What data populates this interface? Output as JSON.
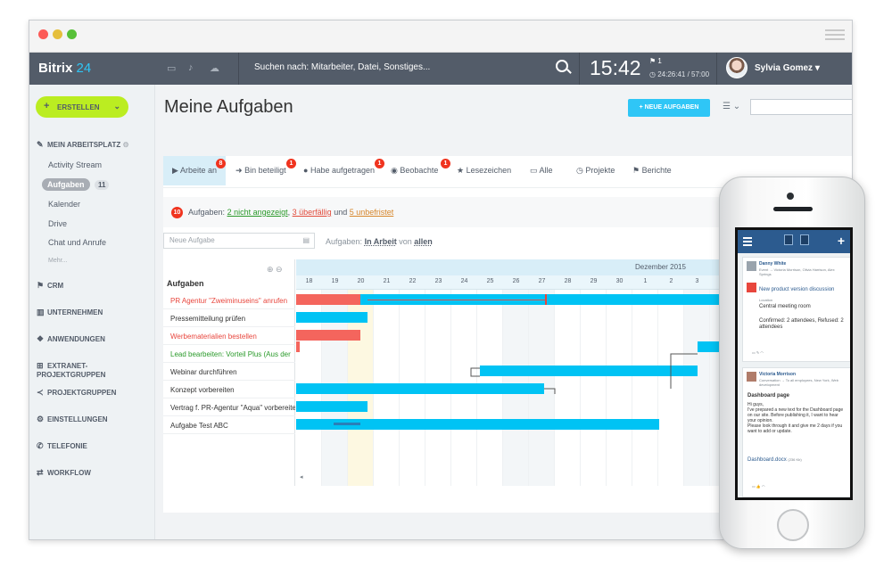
{
  "app": {
    "logo_main": "Bitrix",
    "logo_num": "24",
    "search_placeholder": "Suchen nach: Mitarbeiter, Datei, Sonstiges...",
    "clock": "15:42",
    "clock_flag": "1",
    "clock_sub": "24:26:41 / 57:00",
    "user_name": "Sylvia Gomez"
  },
  "sidebar": {
    "create_label": "ERSTELLEN",
    "section_workplace": "MEIN ARBEITSPLATZ",
    "items": [
      "Activity Stream",
      "Aufgaben",
      "Kalender",
      "Drive",
      "Chat und Anrufe"
    ],
    "tasks_count": "11",
    "more": "Mehr...",
    "sections": [
      "CRM",
      "UNTERNEHMEN",
      "ANWENDUNGEN",
      "EXTRANET-PROJEKTGRUPPEN",
      "PROJEKTGRUPPEN",
      "EINSTELLUNGEN",
      "TELEFONIE",
      "WORKFLOW"
    ]
  },
  "main": {
    "title": "Meine Aufgaben",
    "new_task_button": "NEUE AUFGABEN",
    "tabs": [
      {
        "label": "Arbeite an",
        "badge": "8"
      },
      {
        "label": "Bin beteiligt",
        "badge": "1"
      },
      {
        "label": "Habe aufgetragen",
        "badge": "1"
      },
      {
        "label": "Beobachte",
        "badge": "1"
      },
      {
        "label": "Lesezeichen",
        "badge": ""
      },
      {
        "label": "Alle",
        "badge": ""
      },
      {
        "label": "Projekte",
        "badge": ""
      },
      {
        "label": "Berichte",
        "badge": ""
      }
    ],
    "notice": {
      "count": "10",
      "prefix": "Aufgaben:",
      "link1": "2 nicht angezeigt",
      "link2": "3 überfällig",
      "and": "und",
      "link3": "5 unbefristet"
    },
    "new_task_placeholder": "Neue Aufgabe",
    "filter": {
      "prefix": "Aufgaben:",
      "status": "In Arbeit",
      "von": "von",
      "who": "allen"
    }
  },
  "gantt": {
    "header": "Aufgaben",
    "month": "Dezember 2015",
    "days": [
      "18",
      "19",
      "20",
      "21",
      "22",
      "23",
      "24",
      "25",
      "26",
      "27",
      "28",
      "29",
      "30",
      "1",
      "2",
      "3",
      "4"
    ],
    "tasks": [
      {
        "name": "PR Agentur \"Zweiminuseins\" anrufen",
        "color": "#e8463d"
      },
      {
        "name": "Pressemitteilung prüfen",
        "color": "#333333"
      },
      {
        "name": "Werbematerialien bestellen",
        "color": "#e8463d"
      },
      {
        "name": "Lead bearbeiten: Vorteil Plus (Aus der",
        "color": "#2a9a2a"
      },
      {
        "name": "Webinar durchführen",
        "color": "#333333"
      },
      {
        "name": "Konzept vorbereiten",
        "color": "#333333"
      },
      {
        "name": "Vertrag f. PR-Agentur \"Aqua\" vorbereite",
        "color": "#333333"
      },
      {
        "name": "Aufgabe Test ABC",
        "color": "#333333"
      }
    ],
    "bar_blue": "#00c3f4",
    "bar_red": "#f4655d"
  },
  "phone": {
    "post1_name": "Danny White",
    "post1_to": "Event → Victoria Morrison, Olivia Harrison, Alex Springs",
    "post1_event": "New product version discussion",
    "post1_location_label": "Location",
    "post1_location": "Central meeting room",
    "post1_status": "Confirmed: 2 attendees, Refused: 2 attendees",
    "post2_name": "Victoria Morrison",
    "post2_to": "Conversation → To all employees, New York, Web development",
    "post2_title": "Dashboard page",
    "post2_body": "Hi guys,\nI've prepared a new text for the Dashboard page on our site. Before publishing it, I want to hear your opinion.\nPlease look through it and give me 2 days if you want to add or update.",
    "post2_file": "Dashboard.docx",
    "post2_file_size": "(236 Kb)"
  }
}
